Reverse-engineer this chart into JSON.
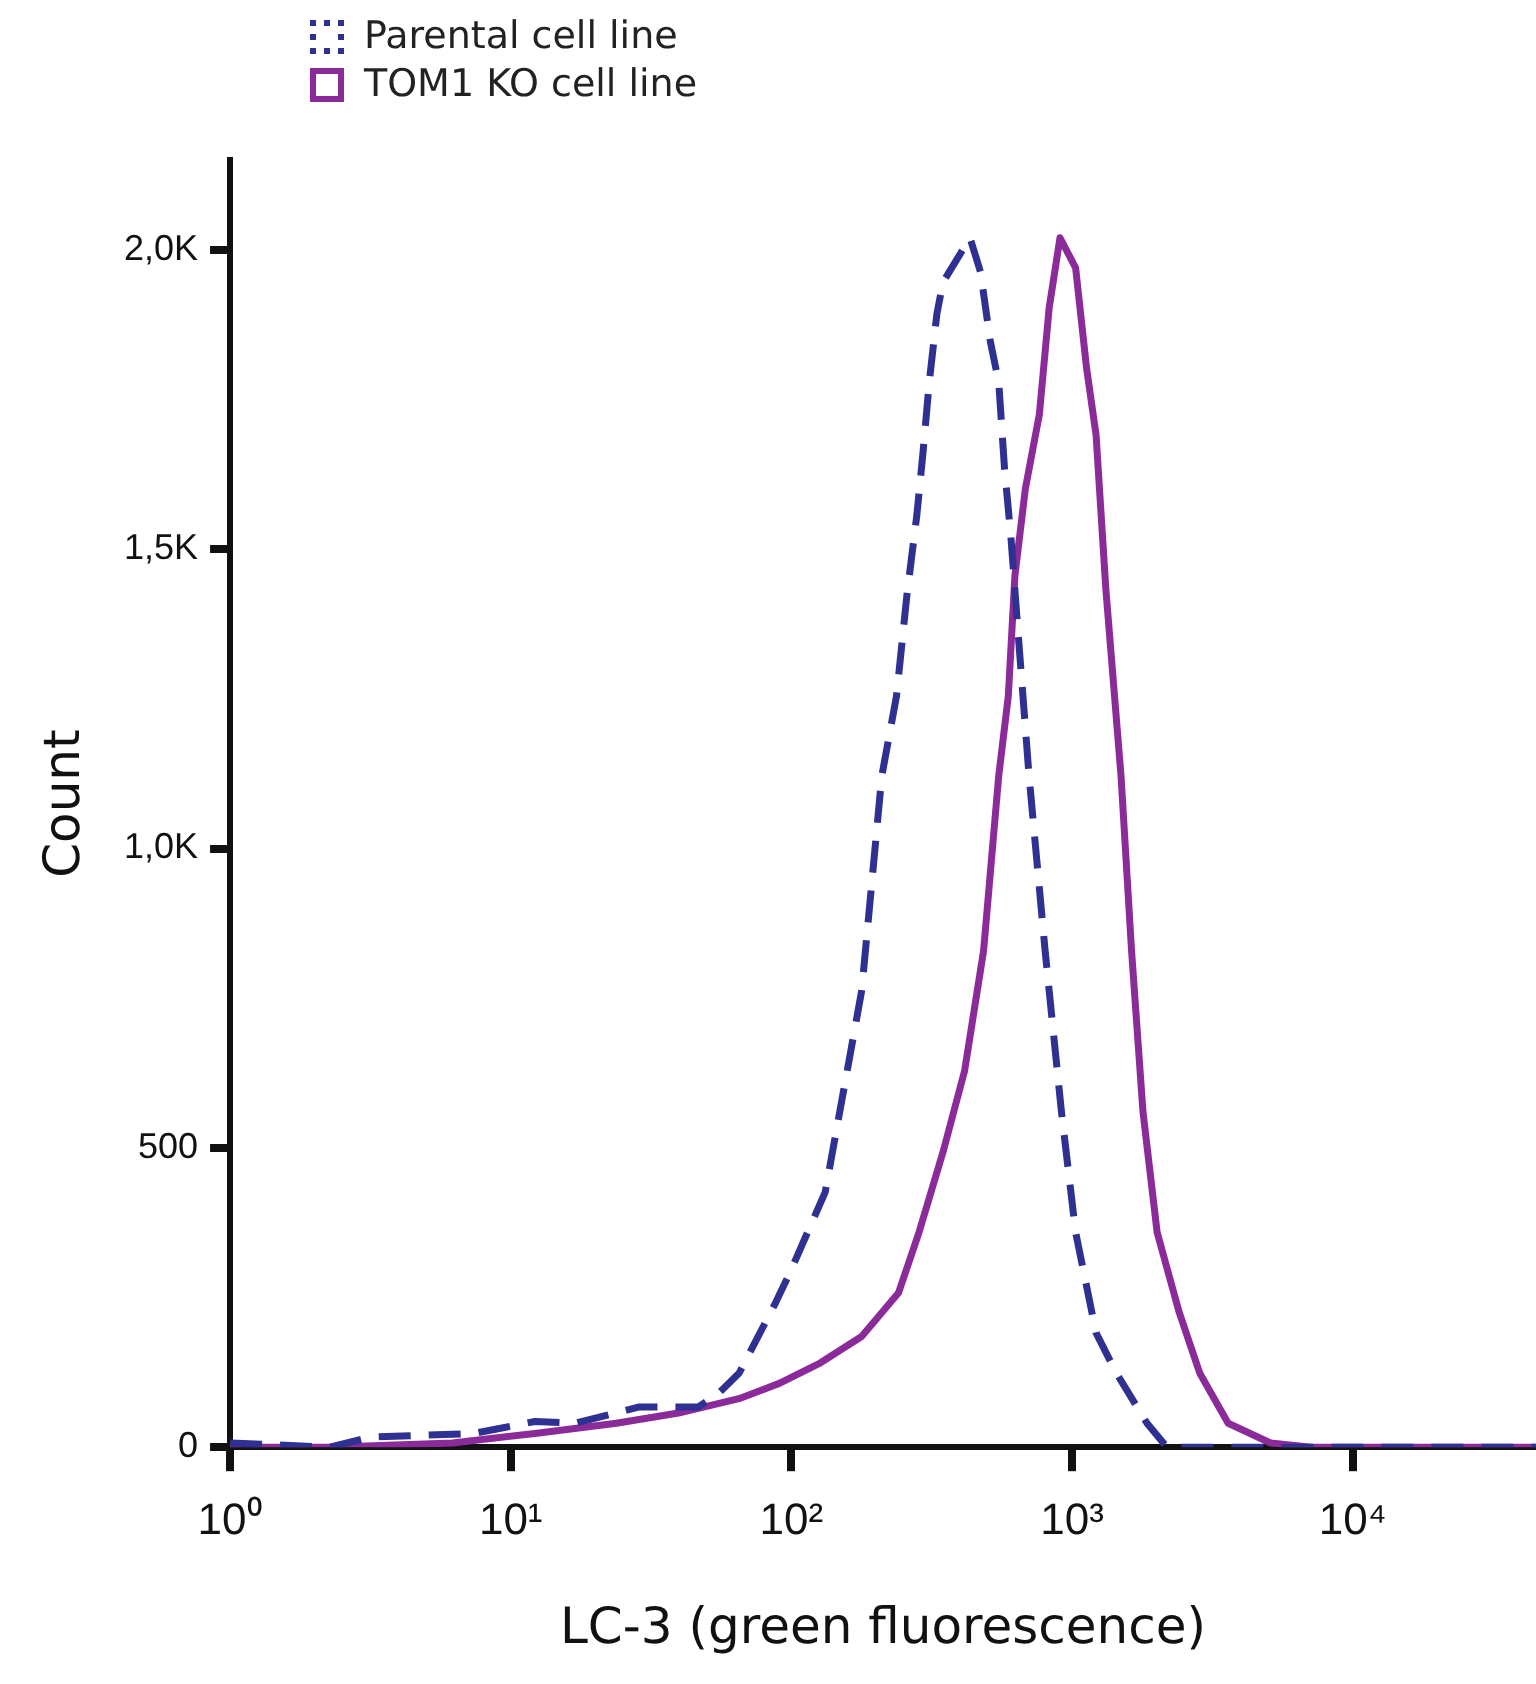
{
  "chart_data": {
    "type": "line",
    "xlabel": "LC-3 (green fluorescence)",
    "ylabel": "Count",
    "log": "x",
    "grid": false,
    "legend": "top left",
    "marker": "none",
    "xlim": [
      1,
      45000
    ],
    "xticks": [
      {
        "value": 1,
        "label": "10⁰"
      },
      {
        "value": 10,
        "label": "10¹"
      },
      {
        "value": 100,
        "label": "10²"
      },
      {
        "value": 1000,
        "label": "10³"
      },
      {
        "value": 10000,
        "label": "10⁴"
      }
    ],
    "ylim": [
      0,
      2150
    ],
    "yticks": [
      0,
      500,
      {
        "value": 1000,
        "label": "1,0K"
      },
      {
        "value": 1500,
        "label": "1,5K"
      },
      {
        "value": 2000,
        "label": "2,0K"
      }
    ],
    "series": [
      {
        "name": "Parental cell line",
        "color": "#2e3192",
        "line_style": "dashed",
        "x": [
          1,
          2.27,
          3.18,
          7.37,
          12.2,
          17,
          28.5,
          46.5,
          55,
          65.2,
          88,
          98.9,
          132,
          178,
          210,
          237,
          258,
          280,
          294,
          310,
          330,
          347,
          433,
          472,
          512,
          548,
          575,
          605,
          647,
          703,
          802,
          917,
          1030,
          1218,
          1438,
          1850,
          2180,
          5000,
          45000
        ],
        "values": [
          7,
          0,
          17,
          23,
          43,
          40,
          67,
          67,
          90,
          124,
          242,
          292,
          426,
          762,
          1121,
          1255,
          1423,
          1557,
          1658,
          1779,
          1893,
          1946,
          2020,
          1963,
          1846,
          1779,
          1634,
          1523,
          1342,
          1121,
          829,
          560,
          359,
          191,
          124,
          40,
          0,
          0,
          0
        ]
      },
      {
        "name": "TOM1 KO cell line",
        "color": "#8b2b9a",
        "line_style": "solid",
        "x": [
          1,
          2.27,
          6.2,
          12.2,
          23.8,
          39.6,
          65,
          91,
          127,
          178,
          241,
          285,
          347,
          414,
          484,
          548,
          593,
          626,
          682,
          765,
          829,
          906,
          1030,
          1127,
          1218,
          1320,
          1495,
          1630,
          1790,
          2010,
          2410,
          2850,
          3600,
          5100,
          7090,
          45000
        ],
        "values": [
          0,
          0,
          7,
          23,
          40,
          57,
          81,
          107,
          141,
          185,
          258,
          359,
          493,
          628,
          829,
          1121,
          1255,
          1456,
          1601,
          1725,
          1903,
          2020,
          1970,
          1802,
          1691,
          1433,
          1121,
          829,
          560,
          359,
          225,
          124,
          40,
          7,
          0,
          0
        ]
      }
    ]
  }
}
